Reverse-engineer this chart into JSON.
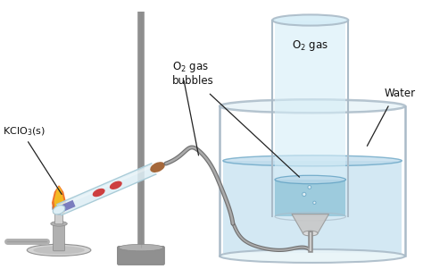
{
  "colors": {
    "water_blue": "#7ab8d9",
    "water_blue_light": "#b8d8ea",
    "water_blue_dark": "#5a9cbf",
    "water_blue_med": "#90c4d8",
    "glass_edge": "#b0ccd8",
    "glass_fill": "#e8f4f8",
    "stand_gray": "#b0b0b0",
    "stand_dark": "#888888",
    "stand_light": "#d0d0d0",
    "tube_glass_fill": "#ddeef5",
    "tube_edge": "#aaccd8",
    "flame_yellow": "#f5c020",
    "flame_orange": "#f07020",
    "flame_blue": "#3060a0",
    "flame_blue2": "#6080c0",
    "clamp_red": "#cc3030",
    "clamp_brown": "#a06030",
    "delivery_tube": "#888888",
    "delivery_tube_inner": "#bbbbbb",
    "beaker_edge": "#aabbc8",
    "beaker_fill": "#cce4f2",
    "cylinder_edge": "#aabbc8",
    "cylinder_fill": "#d5edf7",
    "funnel_gray": "#c8c8c8",
    "text_color": "#111111",
    "arrow_color": "#222222",
    "bg": "#ffffff"
  },
  "labels": {
    "kclo3": "KClO$_3$(s)",
    "o2_bubbles_1": "O$_2$ gas",
    "o2_bubbles_2": "bubbles",
    "o2_gas": "O$_2$ gas",
    "water": "Water"
  }
}
